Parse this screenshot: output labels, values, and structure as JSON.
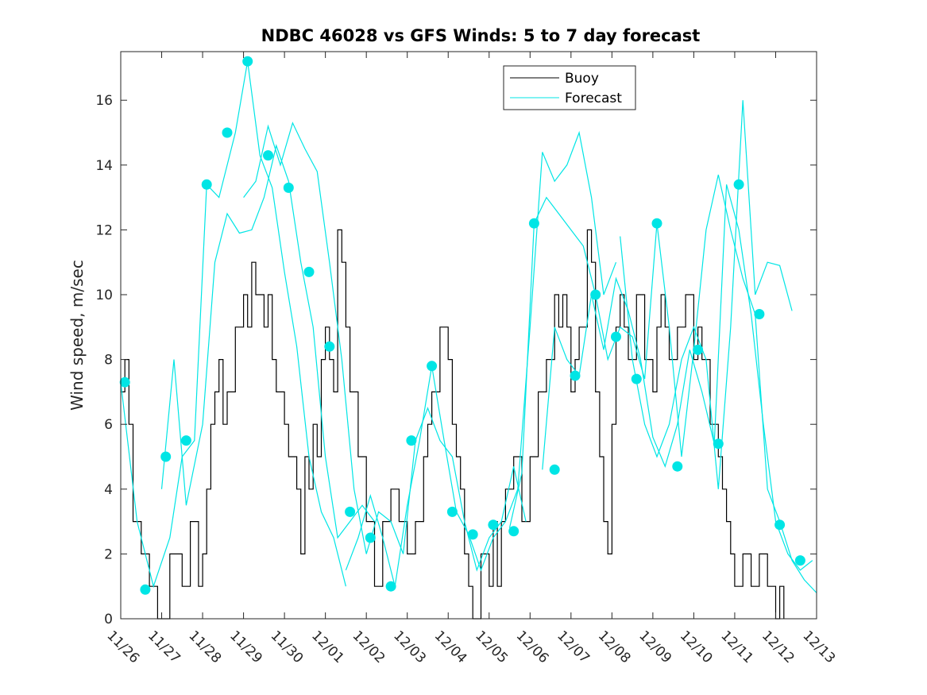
{
  "chart_data": {
    "type": "line",
    "title": "NDBC 46028 vs GFS Winds: 5 to 7 day forecast",
    "xlabel": "",
    "ylabel": "Wind speed, m/sec",
    "xlim": [
      0,
      17
    ],
    "ylim": [
      0,
      17.5
    ],
    "x_ticks": [
      0,
      1,
      2,
      3,
      4,
      5,
      6,
      7,
      8,
      9,
      10,
      11,
      12,
      13,
      14,
      15,
      16,
      17
    ],
    "x_tick_labels": [
      "11/26",
      "11/27",
      "11/28",
      "11/29",
      "11/30",
      "12/01",
      "12/02",
      "12/03",
      "12/04",
      "12/05",
      "12/06",
      "12/07",
      "12/08",
      "12/09",
      "12/10",
      "12/11",
      "12/12",
      "12/13"
    ],
    "y_ticks": [
      0,
      2,
      4,
      6,
      8,
      10,
      12,
      14,
      16
    ],
    "y_tick_labels": [
      "0",
      "2",
      "4",
      "6",
      "8",
      "10",
      "12",
      "14",
      "16"
    ],
    "legend": {
      "placement": "top-center",
      "entries": [
        "Buoy",
        "Forecast"
      ]
    },
    "colors": {
      "buoy": "#000000",
      "forecast": "#00e5e5"
    },
    "buoy": {
      "name": "Buoy",
      "x": [
        0,
        0.1,
        0.2,
        0.3,
        0.5,
        0.7,
        0.9,
        1.2,
        1.5,
        1.7,
        1.9,
        2.0,
        2.1,
        2.2,
        2.3,
        2.4,
        2.5,
        2.6,
        2.8,
        3.0,
        3.1,
        3.2,
        3.3,
        3.5,
        3.6,
        3.7,
        3.8,
        4.0,
        4.1,
        4.2,
        4.3,
        4.4,
        4.5,
        4.6,
        4.7,
        4.8,
        4.9,
        5.0,
        5.1,
        5.2,
        5.3,
        5.4,
        5.5,
        5.6,
        5.8,
        6.0,
        6.2,
        6.4,
        6.6,
        6.8,
        7.0,
        7.2,
        7.4,
        7.5,
        7.6,
        7.8,
        8.0,
        8.1,
        8.2,
        8.3,
        8.4,
        8.5,
        8.6,
        8.8,
        9.0,
        9.1,
        9.2,
        9.3,
        9.4,
        9.6,
        9.8,
        10.0,
        10.2,
        10.4,
        10.6,
        10.7,
        10.8,
        10.9,
        11.0,
        11.1,
        11.2,
        11.4,
        11.5,
        11.6,
        11.7,
        11.8,
        11.9,
        12.0,
        12.1,
        12.2,
        12.3,
        12.4,
        12.6,
        12.8,
        13.0,
        13.1,
        13.2,
        13.3,
        13.4,
        13.6,
        13.8,
        14.0,
        14.1,
        14.2,
        14.4,
        14.6,
        14.7,
        14.8,
        14.9,
        15.0,
        15.2,
        15.4,
        15.6,
        15.8,
        16.0,
        16.1,
        16.2
      ],
      "y": [
        7,
        8,
        6,
        3,
        2,
        1,
        0,
        2,
        1,
        3,
        1,
        2,
        4,
        6,
        7,
        8,
        6,
        7,
        9,
        10,
        9,
        11,
        10,
        9,
        10,
        8,
        7,
        6,
        5,
        5,
        4,
        2,
        5,
        4,
        6,
        5,
        8,
        9,
        8,
        7,
        12,
        11,
        9,
        7,
        5,
        3,
        1,
        3,
        4,
        3,
        2,
        3,
        5,
        6,
        7,
        9,
        8,
        6,
        5,
        4,
        2,
        1,
        0,
        2,
        1,
        3,
        1,
        3,
        4,
        5,
        3,
        5,
        7,
        8,
        10,
        9,
        10,
        9,
        7,
        8,
        9,
        12,
        11,
        7,
        5,
        3,
        2,
        6,
        9,
        10,
        9,
        8,
        10,
        8,
        7,
        9,
        10,
        9,
        8,
        9,
        10,
        8,
        9,
        8,
        6,
        5,
        4,
        3,
        2,
        1,
        2,
        1,
        2,
        1,
        0,
        1,
        0
      ]
    },
    "forecast": [
      {
        "name": "Forecast",
        "x": [
          0,
          0.4,
          0.8,
          1.2,
          1.5,
          1.8,
          2.1,
          2.4,
          2.8,
          3.1,
          3.4,
          3.7,
          4.0,
          4.3,
          4.6,
          4.9,
          5.2,
          5.5
        ],
        "y": [
          7.3,
          3.0,
          1.0,
          2.5,
          5.0,
          5.5,
          13.4,
          13.0,
          15.0,
          17.2,
          14.3,
          13.3,
          10.7,
          8.4,
          5.0,
          3.3,
          2.5,
          1.0
        ]
      },
      {
        "name": "Forecast",
        "x": [
          1.0,
          1.3,
          1.6,
          2.0,
          2.3,
          2.6,
          2.9,
          3.2,
          3.5,
          3.8,
          4.1,
          4.4,
          4.7,
          5.0,
          5.3,
          5.6,
          5.9,
          6.2
        ],
        "y": [
          4.0,
          8.0,
          3.5,
          6.0,
          11.0,
          12.5,
          11.9,
          12.0,
          13.0,
          14.6,
          13.5,
          11.0,
          9.0,
          5.0,
          2.5,
          3.0,
          3.5,
          3.0
        ]
      },
      {
        "name": "Forecast",
        "x": [
          3.0,
          3.3,
          3.6,
          3.9,
          4.2,
          4.5,
          4.8,
          5.1,
          5.4,
          5.7,
          6.0,
          6.3,
          6.6,
          6.9,
          7.2,
          7.5,
          7.8,
          8.1,
          8.4,
          8.7,
          9.0,
          9.3,
          9.6,
          9.9
        ],
        "y": [
          13.0,
          13.5,
          15.2,
          14.0,
          15.3,
          14.5,
          13.8,
          11.0,
          8.0,
          4.0,
          2.0,
          3.3,
          3.0,
          2.0,
          5.5,
          6.5,
          5.5,
          5.0,
          3.0,
          1.5,
          2.5,
          3.0,
          4.7,
          3.0
        ]
      },
      {
        "name": "Forecast",
        "x": [
          5.5,
          5.8,
          6.1,
          6.4,
          6.7,
          7.0,
          7.3,
          7.6,
          7.9,
          8.2,
          8.5,
          8.8,
          9.1,
          9.4,
          9.7,
          10.0,
          10.3,
          10.6,
          10.9,
          11.2,
          11.5,
          11.8,
          12.1
        ],
        "y": [
          1.5,
          2.5,
          3.8,
          2.5,
          1.0,
          3.5,
          5.5,
          7.8,
          5.5,
          3.3,
          2.6,
          1.5,
          2.5,
          3.0,
          4.0,
          9.0,
          14.4,
          13.5,
          14.0,
          15.0,
          13.0,
          10.0,
          11.0
        ]
      },
      {
        "name": "Forecast",
        "x": [
          9.5,
          9.8,
          10.1,
          10.4,
          10.7,
          11.0,
          11.3,
          11.6,
          11.9,
          12.2,
          12.5,
          12.8,
          13.1,
          13.4,
          13.7,
          14.0,
          14.3,
          14.6,
          14.9,
          15.2,
          15.5,
          15.8,
          16.1,
          16.4,
          16.7,
          17.0
        ],
        "y": [
          2.8,
          4.5,
          12.2,
          13.0,
          12.5,
          12.0,
          11.5,
          10.0,
          8.0,
          9.0,
          8.7,
          7.4,
          12.2,
          9.0,
          5.0,
          8.3,
          12.0,
          13.7,
          12.0,
          10.5,
          9.4,
          4.0,
          3.0,
          1.8,
          1.2,
          0.8
        ]
      },
      {
        "name": "Forecast",
        "x": [
          10.3,
          10.6,
          10.9,
          11.2,
          11.5,
          11.8,
          12.1,
          12.4,
          12.7,
          13.0,
          13.3,
          13.6,
          13.9,
          14.2,
          14.5,
          14.8,
          15.1,
          15.4,
          15.7,
          16.0,
          16.3,
          16.6,
          16.9
        ],
        "y": [
          4.6,
          9.0,
          8.0,
          7.5,
          10.0,
          8.3,
          10.5,
          9.5,
          8.0,
          5.6,
          4.7,
          6.0,
          8.3,
          7.0,
          5.4,
          13.4,
          12.0,
          9.4,
          6.0,
          3.0,
          2.0,
          1.5,
          1.8
        ]
      },
      {
        "name": "Forecast",
        "x": [
          12.2,
          12.5,
          12.8,
          13.1,
          13.4,
          13.7,
          14.0,
          14.3,
          14.6,
          14.9,
          15.2,
          15.5,
          15.8,
          16.1,
          16.4
        ],
        "y": [
          11.8,
          8.0,
          6.0,
          5.0,
          6.0,
          8.0,
          9.0,
          8.0,
          4.0,
          9.0,
          16.0,
          10.0,
          11.0,
          10.9,
          9.5
        ]
      }
    ],
    "markers": {
      "x": [
        0.1,
        0.6,
        1.1,
        1.6,
        2.1,
        2.6,
        3.1,
        3.6,
        4.1,
        4.6,
        5.1,
        5.6,
        6.1,
        6.6,
        7.1,
        7.6,
        8.1,
        8.6,
        9.1,
        9.6,
        10.1,
        10.6,
        11.1,
        11.6,
        12.1,
        12.6,
        13.1,
        13.6,
        14.1,
        14.6,
        15.1,
        15.6,
        16.1,
        16.6
      ],
      "y": [
        7.3,
        0.9,
        5.0,
        5.5,
        13.4,
        15.0,
        17.2,
        14.3,
        13.3,
        10.7,
        8.4,
        3.3,
        2.5,
        1.0,
        5.5,
        7.8,
        3.3,
        2.6,
        2.9,
        2.7,
        12.2,
        4.6,
        7.5,
        10.0,
        8.7,
        7.4,
        12.2,
        4.7,
        8.3,
        5.4,
        13.4,
        9.4,
        2.9,
        1.8
      ]
    }
  }
}
